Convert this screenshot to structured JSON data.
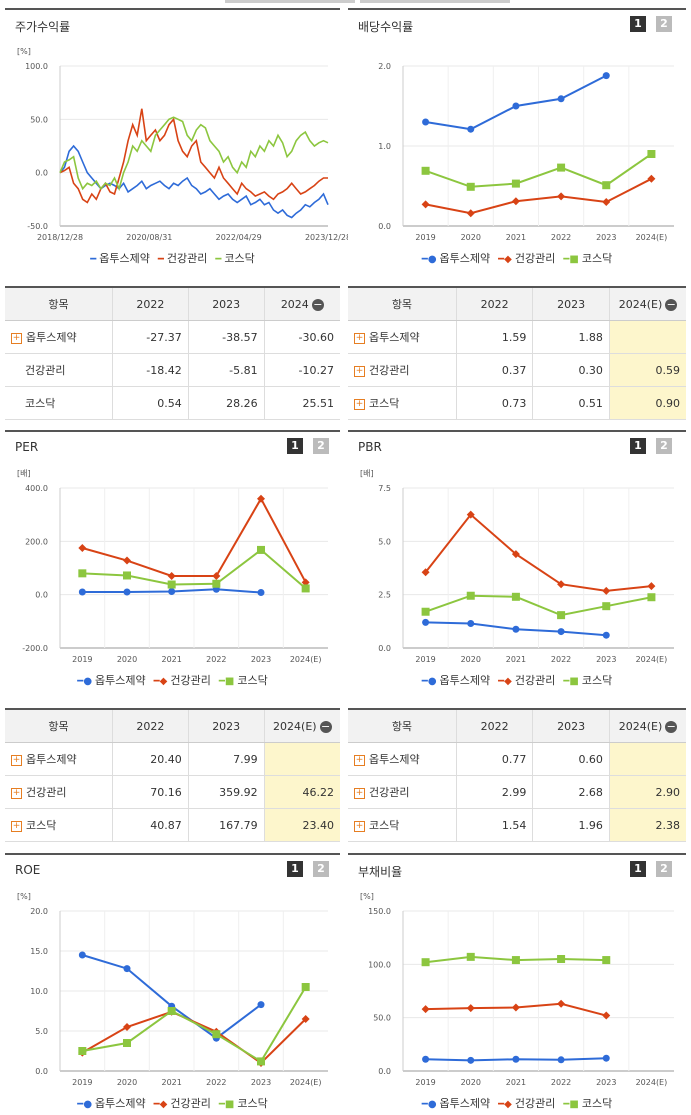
{
  "colors": {
    "s1": "#2e6bd8",
    "s2": "#d84315",
    "s3": "#8cc63f"
  },
  "legend": [
    "옵투스제약",
    "건강관리",
    "코스닥"
  ],
  "panels": {
    "stock": {
      "title": "주가수익률"
    },
    "div": {
      "title": "배당수익률",
      "btn1": "1",
      "btn2": "2"
    },
    "per": {
      "title": "PER",
      "btn1": "1",
      "btn2": "2"
    },
    "pbr": {
      "title": "PBR",
      "btn1": "1",
      "btn2": "2"
    },
    "roe": {
      "title": "ROE",
      "btn1": "1",
      "btn2": "2"
    },
    "debt": {
      "title": "부채비율",
      "btn1": "1",
      "btn2": "2"
    }
  },
  "tables": {
    "stock": {
      "header": [
        "항목",
        "2022",
        "2023",
        "2024"
      ],
      "rows": [
        {
          "name": "옵투스제약",
          "plus": true,
          "v": [
            "-27.37",
            "-38.57",
            "-30.60"
          ]
        },
        {
          "name": "건강관리",
          "plus": false,
          "v": [
            "-18.42",
            "-5.81",
            "-10.27"
          ]
        },
        {
          "name": "코스닥",
          "plus": false,
          "v": [
            "0.54",
            "28.26",
            "25.51"
          ]
        }
      ]
    },
    "div": {
      "header": [
        "항목",
        "2022",
        "2023",
        "2024(E)"
      ],
      "rows": [
        {
          "name": "옵투스제약",
          "plus": true,
          "v": [
            "1.59",
            "1.88",
            ""
          ]
        },
        {
          "name": "건강관리",
          "plus": true,
          "v": [
            "0.37",
            "0.30",
            "0.59"
          ]
        },
        {
          "name": "코스닥",
          "plus": true,
          "v": [
            "0.73",
            "0.51",
            "0.90"
          ]
        }
      ]
    },
    "per": {
      "header": [
        "항목",
        "2022",
        "2023",
        "2024(E)"
      ],
      "rows": [
        {
          "name": "옵투스제약",
          "plus": true,
          "v": [
            "20.40",
            "7.99",
            ""
          ]
        },
        {
          "name": "건강관리",
          "plus": true,
          "v": [
            "70.16",
            "359.92",
            "46.22"
          ]
        },
        {
          "name": "코스닥",
          "plus": true,
          "v": [
            "40.87",
            "167.79",
            "23.40"
          ]
        }
      ]
    },
    "pbr": {
      "header": [
        "항목",
        "2022",
        "2023",
        "2024(E)"
      ],
      "rows": [
        {
          "name": "옵투스제약",
          "plus": true,
          "v": [
            "0.77",
            "0.60",
            ""
          ]
        },
        {
          "name": "건강관리",
          "plus": true,
          "v": [
            "2.99",
            "2.68",
            "2.90"
          ]
        },
        {
          "name": "코스닥",
          "plus": true,
          "v": [
            "1.54",
            "1.96",
            "2.38"
          ]
        }
      ]
    }
  },
  "chart_data": [
    {
      "id": "stock",
      "type": "line",
      "unit": "[%]",
      "ylim": [
        -50,
        100
      ],
      "yticks": [
        "100.0",
        "50.0",
        "0.0",
        "-50.0"
      ],
      "xticks": [
        "2018/12/28",
        "2020/08/31",
        "2022/04/29",
        "2023/12/28"
      ],
      "series": [
        {
          "name": "옵투스제약",
          "values": [
            0,
            5,
            20,
            25,
            20,
            10,
            0,
            -5,
            -10,
            -15,
            -12,
            -10,
            -12,
            -15,
            -10,
            -18,
            -15,
            -12,
            -8,
            -15,
            -12,
            -10,
            -8,
            -12,
            -15,
            -10,
            -12,
            -8,
            -5,
            -12,
            -15,
            -20,
            -18,
            -15,
            -20,
            -25,
            -22,
            -20,
            -25,
            -28,
            -25,
            -22,
            -30,
            -28,
            -25,
            -30,
            -28,
            -35,
            -38,
            -35,
            -40,
            -42,
            -38,
            -35,
            -30,
            -32,
            -28,
            -25,
            -20,
            -30
          ]
        },
        {
          "name": "건강관리",
          "values": [
            0,
            2,
            5,
            -10,
            -15,
            -25,
            -28,
            -20,
            -25,
            -15,
            -10,
            -18,
            -20,
            -5,
            10,
            30,
            45,
            35,
            60,
            30,
            35,
            40,
            30,
            35,
            45,
            50,
            30,
            20,
            15,
            25,
            30,
            10,
            5,
            0,
            -5,
            5,
            -5,
            -10,
            -15,
            -20,
            -10,
            -15,
            -18,
            -22,
            -20,
            -18,
            -22,
            -25,
            -20,
            -18,
            -15,
            -10,
            -15,
            -20,
            -18,
            -15,
            -12,
            -8,
            -5,
            -5
          ]
        },
        {
          "name": "코스닥",
          "values": [
            0,
            10,
            12,
            15,
            -5,
            -15,
            -10,
            -12,
            -8,
            -15,
            -10,
            -12,
            -5,
            -15,
            0,
            10,
            25,
            20,
            30,
            25,
            20,
            35,
            40,
            45,
            50,
            52,
            50,
            48,
            35,
            30,
            40,
            45,
            42,
            30,
            25,
            20,
            10,
            15,
            5,
            0,
            10,
            5,
            20,
            15,
            25,
            20,
            30,
            25,
            35,
            28,
            15,
            20,
            30,
            35,
            38,
            30,
            25,
            28,
            30,
            28
          ]
        }
      ]
    },
    {
      "id": "div",
      "type": "line",
      "unit": "",
      "ylim": [
        0,
        2
      ],
      "yticks": [
        "2.0",
        "1.0",
        "0.0"
      ],
      "categories": [
        "2019",
        "2020",
        "2021",
        "2022",
        "2023",
        "2024(E)"
      ],
      "series": [
        {
          "name": "옵투스제약",
          "values": [
            1.3,
            1.21,
            1.5,
            1.59,
            1.88,
            null
          ]
        },
        {
          "name": "건강관리",
          "values": [
            0.27,
            0.16,
            0.31,
            0.37,
            0.3,
            0.59
          ]
        },
        {
          "name": "코스닥",
          "values": [
            0.69,
            0.49,
            0.53,
            0.73,
            0.51,
            0.9
          ]
        }
      ]
    },
    {
      "id": "per",
      "type": "line",
      "unit": "[배]",
      "ylim": [
        -200,
        400
      ],
      "yticks": [
        "400.0",
        "200.0",
        "0.0",
        "-200.0"
      ],
      "categories": [
        "2019",
        "2020",
        "2021",
        "2022",
        "2023",
        "2024(E)"
      ],
      "series": [
        {
          "name": "옵투스제약",
          "values": [
            10,
            10,
            12,
            20.4,
            7.99,
            null
          ]
        },
        {
          "name": "건강관리",
          "values": [
            175,
            128,
            70,
            70.16,
            359.92,
            46.22
          ]
        },
        {
          "name": "코스닥",
          "values": [
            80,
            72,
            38,
            40.87,
            167.79,
            23.4
          ]
        }
      ]
    },
    {
      "id": "pbr",
      "type": "line",
      "unit": "[배]",
      "ylim": [
        0,
        7.5
      ],
      "yticks": [
        "7.5",
        "5.0",
        "2.5",
        "0.0"
      ],
      "categories": [
        "2019",
        "2020",
        "2021",
        "2022",
        "2023",
        "2024(E)"
      ],
      "series": [
        {
          "name": "옵투스제약",
          "values": [
            1.2,
            1.15,
            0.88,
            0.77,
            0.6,
            null
          ]
        },
        {
          "name": "건강관리",
          "values": [
            3.55,
            6.25,
            4.4,
            2.99,
            2.68,
            2.9
          ]
        },
        {
          "name": "코스닥",
          "values": [
            1.7,
            2.45,
            2.4,
            1.54,
            1.96,
            2.38
          ]
        }
      ]
    },
    {
      "id": "roe",
      "type": "line",
      "unit": "[%]",
      "ylim": [
        0,
        20
      ],
      "yticks": [
        "20.0",
        "15.0",
        "10.0",
        "5.0",
        "0.0"
      ],
      "categories": [
        "2019",
        "2020",
        "2021",
        "2022",
        "2023",
        "2024(E)"
      ],
      "series": [
        {
          "name": "옵투스제약",
          "values": [
            14.5,
            12.8,
            8.1,
            4.1,
            8.3,
            null
          ]
        },
        {
          "name": "건강관리",
          "values": [
            2.3,
            5.5,
            7.4,
            4.9,
            1.0,
            6.5
          ]
        },
        {
          "name": "코스닥",
          "values": [
            2.5,
            3.5,
            7.5,
            4.6,
            1.2,
            10.5
          ]
        }
      ]
    },
    {
      "id": "debt",
      "type": "line",
      "unit": "[%]",
      "ylim": [
        0,
        150
      ],
      "yticks": [
        "150.0",
        "100.0",
        "50.0",
        "0.0"
      ],
      "categories": [
        "2019",
        "2020",
        "2021",
        "2022",
        "2023",
        "2024(E)"
      ],
      "series": [
        {
          "name": "옵투스제약",
          "values": [
            11,
            10,
            11,
            10.5,
            12,
            null
          ]
        },
        {
          "name": "건강관리",
          "values": [
            58,
            59,
            59.5,
            63,
            52,
            null
          ]
        },
        {
          "name": "코스닥",
          "values": [
            102,
            107,
            104,
            105,
            104,
            null
          ]
        }
      ]
    }
  ]
}
